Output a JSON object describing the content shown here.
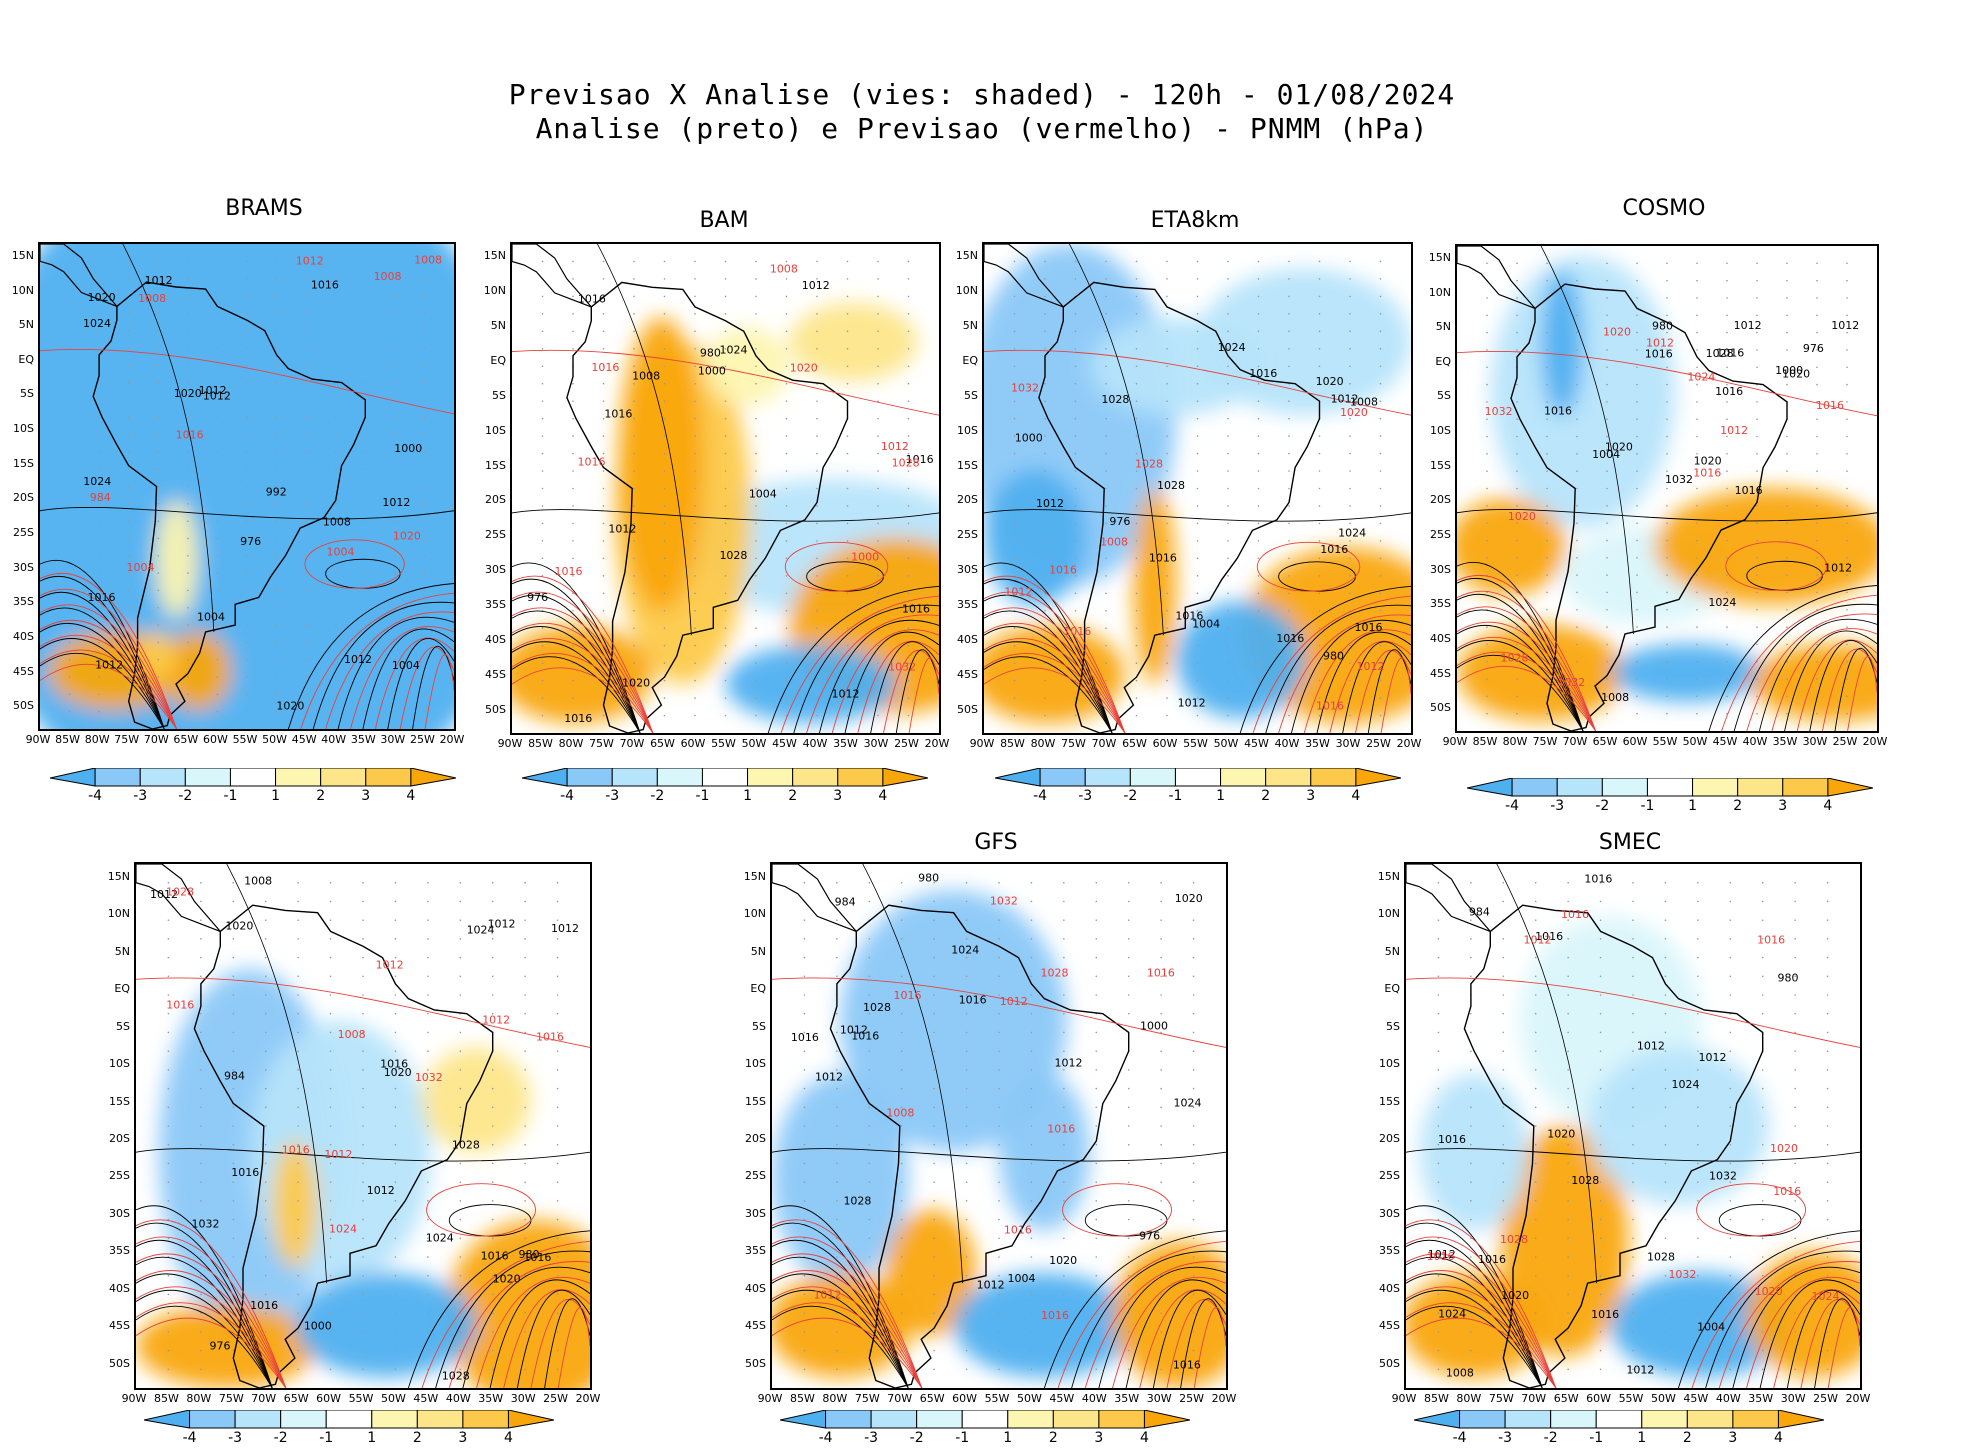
{
  "title": {
    "line1": "Previsao X Analise (vies: shaded) - 120h - 01/08/2024",
    "line2": "Analise (preto) e Previsao (vermelho) - PNMM (hPa)"
  },
  "lat_labels": [
    "15N",
    "10N",
    "5N",
    "EQ",
    "5S",
    "10S",
    "15S",
    "20S",
    "25S",
    "30S",
    "35S",
    "40S",
    "45S",
    "50S"
  ],
  "lon_labels": [
    "90W",
    "85W",
    "80W",
    "75W",
    "70W",
    "65W",
    "60W",
    "55W",
    "50W",
    "45W",
    "40W",
    "35W",
    "30W",
    "25W",
    "20W"
  ],
  "colorbar_ticks": [
    "-4",
    "-3",
    "-2",
    "-1",
    "1",
    "2",
    "3",
    "4"
  ],
  "colors": {
    "neg4": "#4fb0f0",
    "neg3": "#8ac8f8",
    "neg2": "#b6e4fb",
    "neg1": "#d9f6fb",
    "pos1": "#fdf6b0",
    "pos2": "#fde68a",
    "pos3": "#fdc94a",
    "pos4": "#f9a60b",
    "analysis_contour": "#000000",
    "forecast_contour": "#e8413c"
  },
  "panels": [
    {
      "name": "BRAMS",
      "bias_map": "brams",
      "analysis_labels": [
        "1008",
        "1012",
        "1012",
        "1012",
        "1012",
        "1012",
        "1016",
        "1016",
        "1020",
        "1020",
        "1024",
        "1024",
        "1020",
        "1004",
        "1004",
        "1000",
        "976",
        "992",
        "1012"
      ],
      "forecast_labels": [
        "1004",
        "1008",
        "1008",
        "1016",
        "1020",
        "1012",
        "1008",
        "1004",
        "984"
      ]
    },
    {
      "name": "BAM",
      "bias_map": "bam",
      "analysis_labels": [
        "1012",
        "1016",
        "1016",
        "1016",
        "1020",
        "1012",
        "1008",
        "1004",
        "1000",
        "976",
        "980",
        "1028",
        "1024",
        "1016",
        "1012",
        "1016"
      ],
      "forecast_labels": [
        "1016",
        "1012",
        "1016",
        "1020",
        "1028",
        "1032",
        "1016",
        "1008",
        "1000"
      ]
    },
    {
      "name": "ETA8km",
      "bias_map": "eta",
      "analysis_labels": [
        "1012",
        "1016",
        "1016",
        "1016",
        "1012",
        "1016",
        "1016",
        "1012",
        "1024",
        "1028",
        "1020",
        "1016",
        "1008",
        "1004",
        "1000",
        "976",
        "980",
        "1028",
        "1024"
      ],
      "forecast_labels": [
        "1016",
        "1012",
        "1012",
        "1016",
        "1028",
        "1032",
        "1016",
        "1020",
        "1008"
      ]
    },
    {
      "name": "COSMO",
      "bias_map": "cosmo",
      "analysis_labels": [
        "1012",
        "1016",
        "1016",
        "1016",
        "1012",
        "1020",
        "1016",
        "1020",
        "1012",
        "1020",
        "1016",
        "1008",
        "1004",
        "1000",
        "976",
        "980",
        "1032",
        "1028",
        "1024"
      ],
      "forecast_labels": [
        "1012",
        "1016",
        "1020",
        "1024",
        "1028",
        "1032",
        "1016",
        "1012",
        "1020",
        "1032"
      ]
    },
    {
      "name": "",
      "bias_map": "wrf",
      "analysis_labels": [
        "1012",
        "1016",
        "1016",
        "1016",
        "1016",
        "1012",
        "1020",
        "1016",
        "1012",
        "1008",
        "1020",
        "1024",
        "1028",
        "1032",
        "1028",
        "1024",
        "1020",
        "1012",
        "1000",
        "976",
        "980",
        "984"
      ],
      "forecast_labels": [
        "1016",
        "1012",
        "1012",
        "1016",
        "1028",
        "1024",
        "1032",
        "1016",
        "1012",
        "1008"
      ]
    },
    {
      "name": "GFS",
      "bias_map": "gfs",
      "analysis_labels": [
        "1012",
        "1016",
        "1016",
        "1016",
        "1012",
        "1012",
        "1016",
        "1012",
        "1020",
        "1020",
        "1024",
        "1028",
        "1028",
        "1024",
        "1004",
        "1000",
        "976",
        "980",
        "984"
      ],
      "forecast_labels": [
        "1016",
        "1016",
        "1016",
        "1012",
        "1016",
        "1028",
        "1032",
        "1016",
        "1012",
        "1008"
      ]
    },
    {
      "name": "SMEC",
      "bias_map": "smec",
      "analysis_labels": [
        "1016",
        "1016",
        "1016",
        "1012",
        "1012",
        "1016",
        "1020",
        "1012",
        "1008",
        "1016",
        "1020",
        "1024",
        "1028",
        "1032",
        "1028",
        "1024",
        "1012",
        "1004",
        "980",
        "984"
      ],
      "forecast_labels": [
        "1016",
        "1016",
        "1016",
        "1012",
        "1020",
        "1024",
        "1028",
        "1032",
        "1020",
        "1016"
      ]
    }
  ]
}
